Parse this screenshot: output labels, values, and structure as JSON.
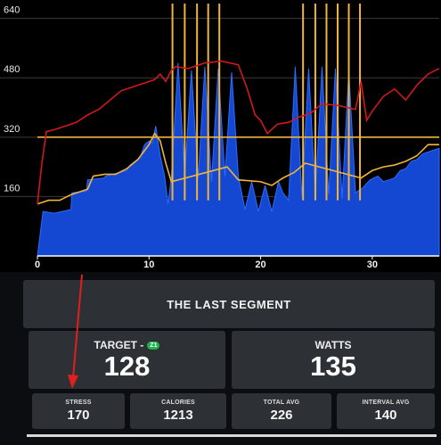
{
  "chart_data": {
    "type": "area",
    "y_ticks": [
      160,
      320,
      480,
      640
    ],
    "x_ticks": [
      "0",
      "10",
      "20",
      "30"
    ],
    "x_tick_values": [
      0,
      10,
      20,
      30
    ],
    "xlim": [
      0,
      36
    ],
    "ylim": [
      0,
      680
    ],
    "target_power_line": 320,
    "series": [
      {
        "kind": "power-area",
        "color": "#1448d2",
        "x": [
          0.0,
          0.5,
          1.5,
          3.0,
          3.1,
          4.4,
          4.5,
          6.0,
          6.1,
          8.0,
          8.3,
          9.2,
          9.6,
          10.0,
          10.3,
          10.6,
          11.0,
          11.4,
          11.7,
          12.0,
          12.6,
          13.2,
          13.8,
          14.4,
          15.0,
          15.6,
          16.2,
          16.8,
          17.4,
          18.0,
          18.6,
          19.2,
          19.8,
          20.4,
          21.0,
          21.6,
          22.0,
          22.5,
          23.1,
          23.7,
          24.3,
          24.9,
          25.5,
          26.1,
          26.7,
          27.3,
          27.9,
          28.5,
          29.2,
          29.8,
          30.5,
          31.0,
          31.5,
          32.0,
          32.5,
          33.0,
          33.5,
          34.0,
          34.5,
          35.0,
          35.5,
          36.0
        ],
        "y": [
          0,
          120,
          115,
          125,
          170,
          175,
          205,
          210,
          215,
          230,
          245,
          265,
          300,
          310,
          305,
          350,
          270,
          215,
          140,
          210,
          520,
          220,
          500,
          210,
          510,
          200,
          505,
          215,
          495,
          215,
          125,
          200,
          120,
          190,
          120,
          200,
          170,
          150,
          510,
          160,
          505,
          165,
          510,
          165,
          505,
          155,
          500,
          170,
          185,
          205,
          215,
          200,
          205,
          210,
          230,
          235,
          255,
          260,
          275,
          280,
          285,
          290
        ]
      },
      {
        "kind": "heart-rate",
        "color": "#d11919",
        "x": [
          0.0,
          0.4,
          0.8,
          1.5,
          2.5,
          3.5,
          4.5,
          5.5,
          6.5,
          7.5,
          8.5,
          9.5,
          10.5,
          11.0,
          11.5,
          12.0,
          12.4,
          13.5,
          15.0,
          16.5,
          18.0,
          18.8,
          19.5,
          20.0,
          20.6,
          21.5,
          22.5,
          23.5,
          24.5,
          25.5,
          27.0,
          28.5,
          29.0,
          29.5,
          30.0,
          31.0,
          32.0,
          33.0,
          34.0,
          35.0,
          36.0
        ],
        "y": [
          140,
          250,
          335,
          340,
          350,
          360,
          380,
          395,
          420,
          445,
          455,
          465,
          475,
          490,
          470,
          500,
          510,
          505,
          520,
          525,
          515,
          450,
          380,
          365,
          330,
          355,
          360,
          375,
          385,
          410,
          405,
          395,
          470,
          365,
          390,
          430,
          450,
          420,
          460,
          490,
          505
        ]
      },
      {
        "kind": "cadence",
        "color": "#f0b43a",
        "spikes_x": [
          12.1,
          13.2,
          14.3,
          15.3,
          16.3,
          23.8,
          24.9,
          25.9,
          26.9,
          27.9,
          28.9
        ],
        "spike_top": 680,
        "x": [
          0,
          1,
          2,
          3,
          3.5,
          4.5,
          5,
          6,
          7,
          8,
          9,
          10,
          10.5,
          11,
          11.5,
          12,
          17,
          18,
          20,
          21,
          22,
          23,
          24,
          29,
          30,
          31,
          32,
          33,
          34,
          35,
          36
        ],
        "y": [
          140,
          150,
          150,
          165,
          170,
          180,
          215,
          220,
          220,
          235,
          260,
          300,
          330,
          310,
          250,
          200,
          240,
          205,
          200,
          190,
          210,
          225,
          250,
          210,
          230,
          240,
          245,
          255,
          270,
          300,
          300
        ]
      }
    ]
  },
  "segment_title": "THE LAST SEGMENT",
  "target": {
    "label": "TARGET -",
    "zone": "Z1",
    "value": "128"
  },
  "watts": {
    "label": "WATTS",
    "value": "135"
  },
  "stats": [
    {
      "label": "STRESS",
      "value": "170"
    },
    {
      "label": "CALORIES",
      "value": "1213"
    },
    {
      "label": "TOTAL AVG",
      "value": "226"
    },
    {
      "label": "INTERVAL AVG",
      "value": "140"
    }
  ]
}
